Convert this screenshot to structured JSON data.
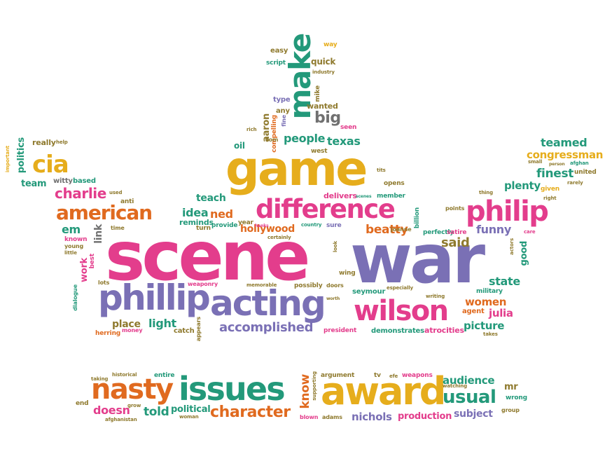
{
  "palette": {
    "pink": "#e33d8c",
    "purple": "#7a70b5",
    "yellow": "#e6ad1c",
    "orange": "#e06a1f",
    "teal": "#23997a",
    "green": "#6aa82c",
    "olive": "#8f7a2e",
    "gray": "#707070",
    "red": "#c8322d"
  },
  "words": [
    {
      "text": "scene",
      "color": "pink"
    },
    {
      "text": "war",
      "color": "purple"
    },
    {
      "text": "game",
      "color": "yellow"
    },
    {
      "text": "acting",
      "color": "purple"
    },
    {
      "text": "phillip",
      "color": "purple"
    },
    {
      "text": "difference",
      "color": "pink"
    },
    {
      "text": "wilson",
      "color": "pink"
    },
    {
      "text": "make",
      "color": "teal"
    },
    {
      "text": "award",
      "color": "yellow"
    },
    {
      "text": "issues",
      "color": "teal"
    },
    {
      "text": "nasty",
      "color": "orange"
    },
    {
      "text": "philip",
      "color": "pink"
    },
    {
      "text": "american",
      "color": "orange"
    },
    {
      "text": "cia",
      "color": "yellow"
    },
    {
      "text": "usual",
      "color": "teal"
    },
    {
      "text": "character",
      "color": "orange"
    },
    {
      "text": "accomplished",
      "color": "purple"
    },
    {
      "text": "big",
      "color": "gray"
    },
    {
      "text": "people",
      "color": "teal"
    },
    {
      "text": "texas",
      "color": "teal"
    },
    {
      "text": "charlie",
      "color": "pink"
    },
    {
      "text": "teamed",
      "color": "teal"
    },
    {
      "text": "congressman",
      "color": "yellow"
    },
    {
      "text": "finest",
      "color": "teal"
    },
    {
      "text": "plenty",
      "color": "teal"
    },
    {
      "text": "said",
      "color": "olive"
    },
    {
      "text": "funny",
      "color": "purple"
    },
    {
      "text": "beatty",
      "color": "orange"
    },
    {
      "text": "hollywood",
      "color": "orange"
    },
    {
      "text": "idea",
      "color": "teal"
    },
    {
      "text": "ned",
      "color": "orange"
    },
    {
      "text": "teach",
      "color": "teal"
    },
    {
      "text": "em",
      "color": "teal"
    },
    {
      "text": "state",
      "color": "teal"
    },
    {
      "text": "women",
      "color": "orange"
    },
    {
      "text": "julia",
      "color": "pink"
    },
    {
      "text": "picture",
      "color": "teal"
    },
    {
      "text": "place",
      "color": "olive"
    },
    {
      "text": "light",
      "color": "teal"
    },
    {
      "text": "audience",
      "color": "teal"
    },
    {
      "text": "subject",
      "color": "purple"
    },
    {
      "text": "nichols",
      "color": "purple"
    },
    {
      "text": "production",
      "color": "pink"
    },
    {
      "text": "doesn",
      "color": "pink"
    },
    {
      "text": "told",
      "color": "teal"
    },
    {
      "text": "political",
      "color": "teal"
    },
    {
      "text": "know",
      "color": "orange"
    },
    {
      "text": "mr",
      "color": "olive"
    },
    {
      "text": "politics",
      "color": "teal"
    },
    {
      "text": "team",
      "color": "teal"
    },
    {
      "text": "link",
      "color": "gray"
    },
    {
      "text": "work",
      "color": "pink"
    },
    {
      "text": "good",
      "color": "teal"
    },
    {
      "text": "aaron",
      "color": "olive"
    },
    {
      "text": "quick",
      "color": "olive"
    },
    {
      "text": "wanted",
      "color": "olive"
    },
    {
      "text": "easy",
      "color": "olive"
    },
    {
      "text": "way",
      "color": "yellow"
    },
    {
      "text": "script",
      "color": "teal"
    },
    {
      "text": "industry",
      "color": "olive"
    },
    {
      "text": "type",
      "color": "purple"
    },
    {
      "text": "any",
      "color": "olive"
    },
    {
      "text": "mike",
      "color": "olive"
    },
    {
      "text": "compelling",
      "color": "orange"
    },
    {
      "text": "tom",
      "color": "olive"
    },
    {
      "text": "rich",
      "color": "olive"
    },
    {
      "text": "oil",
      "color": "teal"
    },
    {
      "text": "seen",
      "color": "pink"
    },
    {
      "text": "west",
      "color": "olive"
    },
    {
      "text": "fine",
      "color": "purple"
    },
    {
      "text": "really",
      "color": "olive"
    },
    {
      "text": "help",
      "color": "olive"
    },
    {
      "text": "important",
      "color": "yellow"
    },
    {
      "text": "witty",
      "color": "gray"
    },
    {
      "text": "based",
      "color": "teal"
    },
    {
      "text": "used",
      "color": "olive"
    },
    {
      "text": "anti",
      "color": "olive"
    },
    {
      "text": "known",
      "color": "pink"
    },
    {
      "text": "young",
      "color": "olive"
    },
    {
      "text": "little",
      "color": "olive"
    },
    {
      "text": "time",
      "color": "olive"
    },
    {
      "text": "reminds",
      "color": "teal"
    },
    {
      "text": "turn",
      "color": "olive"
    },
    {
      "text": "provide",
      "color": "teal"
    },
    {
      "text": "year",
      "color": "olive"
    },
    {
      "text": "certainly",
      "color": "olive"
    },
    {
      "text": "country",
      "color": "teal"
    },
    {
      "text": "sure",
      "color": "purple"
    },
    {
      "text": "delivers",
      "color": "pink"
    },
    {
      "text": "scenes",
      "color": "teal"
    },
    {
      "text": "opens",
      "color": "olive"
    },
    {
      "text": "member",
      "color": "teal"
    },
    {
      "text": "tits",
      "color": "olive"
    },
    {
      "text": "hanks",
      "color": "pink"
    },
    {
      "text": "joanne",
      "color": "olive"
    },
    {
      "text": "billion",
      "color": "teal"
    },
    {
      "text": "perfectly",
      "color": "teal"
    },
    {
      "text": "satire",
      "color": "pink"
    },
    {
      "text": "points",
      "color": "olive"
    },
    {
      "text": "thing",
      "color": "olive"
    },
    {
      "text": "given",
      "color": "yellow"
    },
    {
      "text": "rarely",
      "color": "olive"
    },
    {
      "text": "right",
      "color": "olive"
    },
    {
      "text": "united",
      "color": "olive"
    },
    {
      "text": "small",
      "color": "olive"
    },
    {
      "text": "person",
      "color": "olive"
    },
    {
      "text": "afghan",
      "color": "teal"
    },
    {
      "text": "care",
      "color": "pink"
    },
    {
      "text": "actors",
      "color": "olive"
    },
    {
      "text": "military",
      "color": "teal"
    },
    {
      "text": "agent",
      "color": "orange"
    },
    {
      "text": "writing",
      "color": "olive"
    },
    {
      "text": "atrocities",
      "color": "pink"
    },
    {
      "text": "takes",
      "color": "olive"
    },
    {
      "text": "demonstrates",
      "color": "teal"
    },
    {
      "text": "especially",
      "color": "olive"
    },
    {
      "text": "seymour",
      "color": "teal"
    },
    {
      "text": "worth",
      "color": "olive"
    },
    {
      "text": "president",
      "color": "pink"
    },
    {
      "text": "doors",
      "color": "olive"
    },
    {
      "text": "possibly",
      "color": "olive"
    },
    {
      "text": "wing",
      "color": "olive"
    },
    {
      "text": "look",
      "color": "olive"
    },
    {
      "text": "memorable",
      "color": "olive"
    },
    {
      "text": "weaponry",
      "color": "pink"
    },
    {
      "text": "lots",
      "color": "olive"
    },
    {
      "text": "best",
      "color": "pink"
    },
    {
      "text": "dialogue",
      "color": "teal"
    },
    {
      "text": "herring",
      "color": "orange"
    },
    {
      "text": "money",
      "color": "pink"
    },
    {
      "text": "catch",
      "color": "olive"
    },
    {
      "text": "appears",
      "color": "olive"
    },
    {
      "text": "taking",
      "color": "olive"
    },
    {
      "text": "historical",
      "color": "olive"
    },
    {
      "text": "entire",
      "color": "teal"
    },
    {
      "text": "end",
      "color": "olive"
    },
    {
      "text": "grow",
      "color": "olive"
    },
    {
      "text": "afghanistan",
      "color": "olive"
    },
    {
      "text": "woman",
      "color": "olive"
    },
    {
      "text": "argument",
      "color": "olive"
    },
    {
      "text": "supporting",
      "color": "olive"
    },
    {
      "text": "blown",
      "color": "pink"
    },
    {
      "text": "adams",
      "color": "olive"
    },
    {
      "text": "tv",
      "color": "olive"
    },
    {
      "text": "efe",
      "color": "olive"
    },
    {
      "text": "weapons",
      "color": "pink"
    },
    {
      "text": "watching",
      "color": "olive"
    },
    {
      "text": "wrong",
      "color": "teal"
    },
    {
      "text": "group",
      "color": "olive"
    }
  ]
}
